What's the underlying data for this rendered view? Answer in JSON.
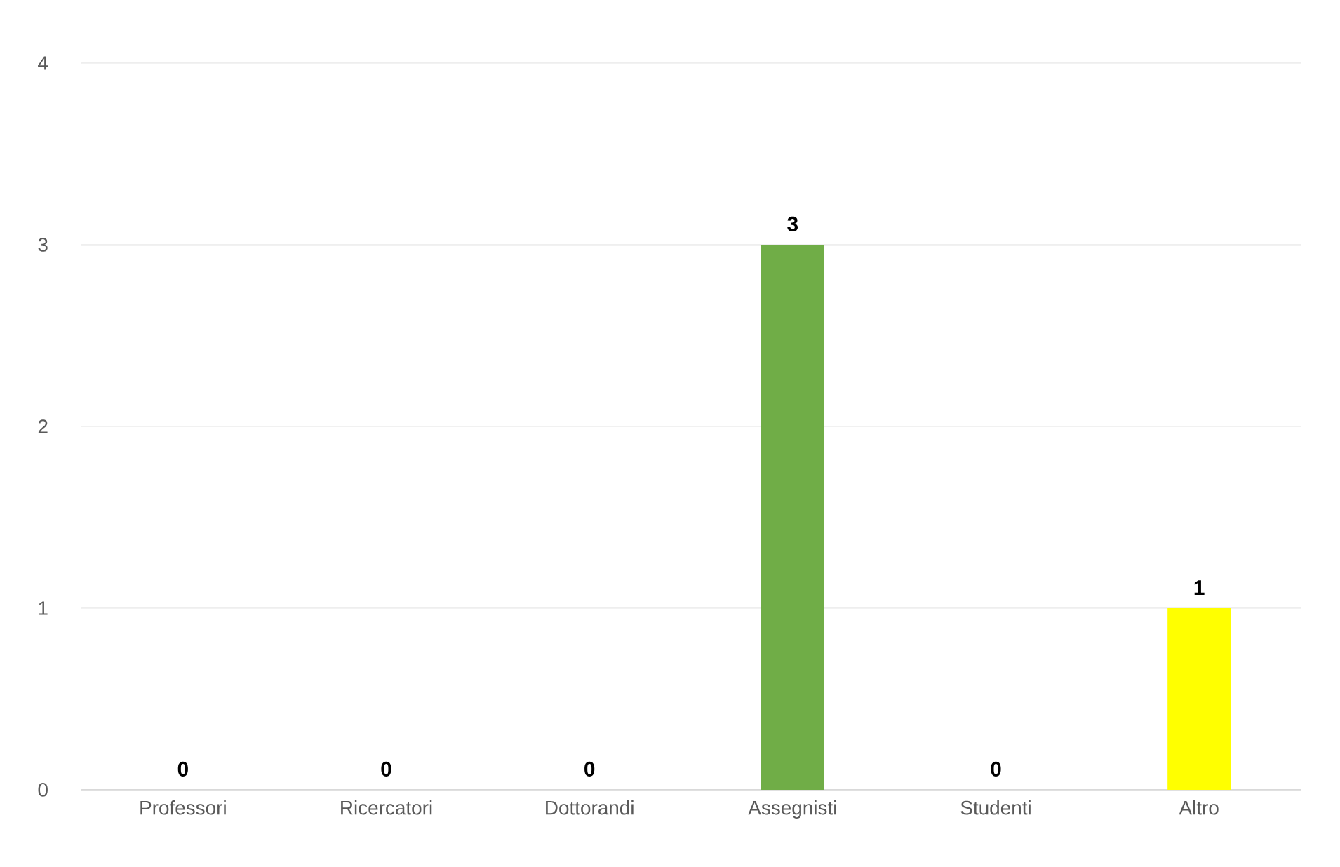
{
  "chart_data": {
    "type": "bar",
    "categories": [
      "Professori",
      "Ricercatori",
      "Dottorandi",
      "Assegnisti",
      "Studenti",
      "Altro"
    ],
    "values": [
      0,
      0,
      0,
      3,
      0,
      1
    ],
    "colors": [
      null,
      null,
      null,
      "#70ad47",
      null,
      "#ffff00"
    ],
    "ylim": [
      0,
      4
    ],
    "yticks": [
      0,
      1,
      2,
      3,
      4
    ],
    "grid": "y",
    "data_labels": true
  }
}
